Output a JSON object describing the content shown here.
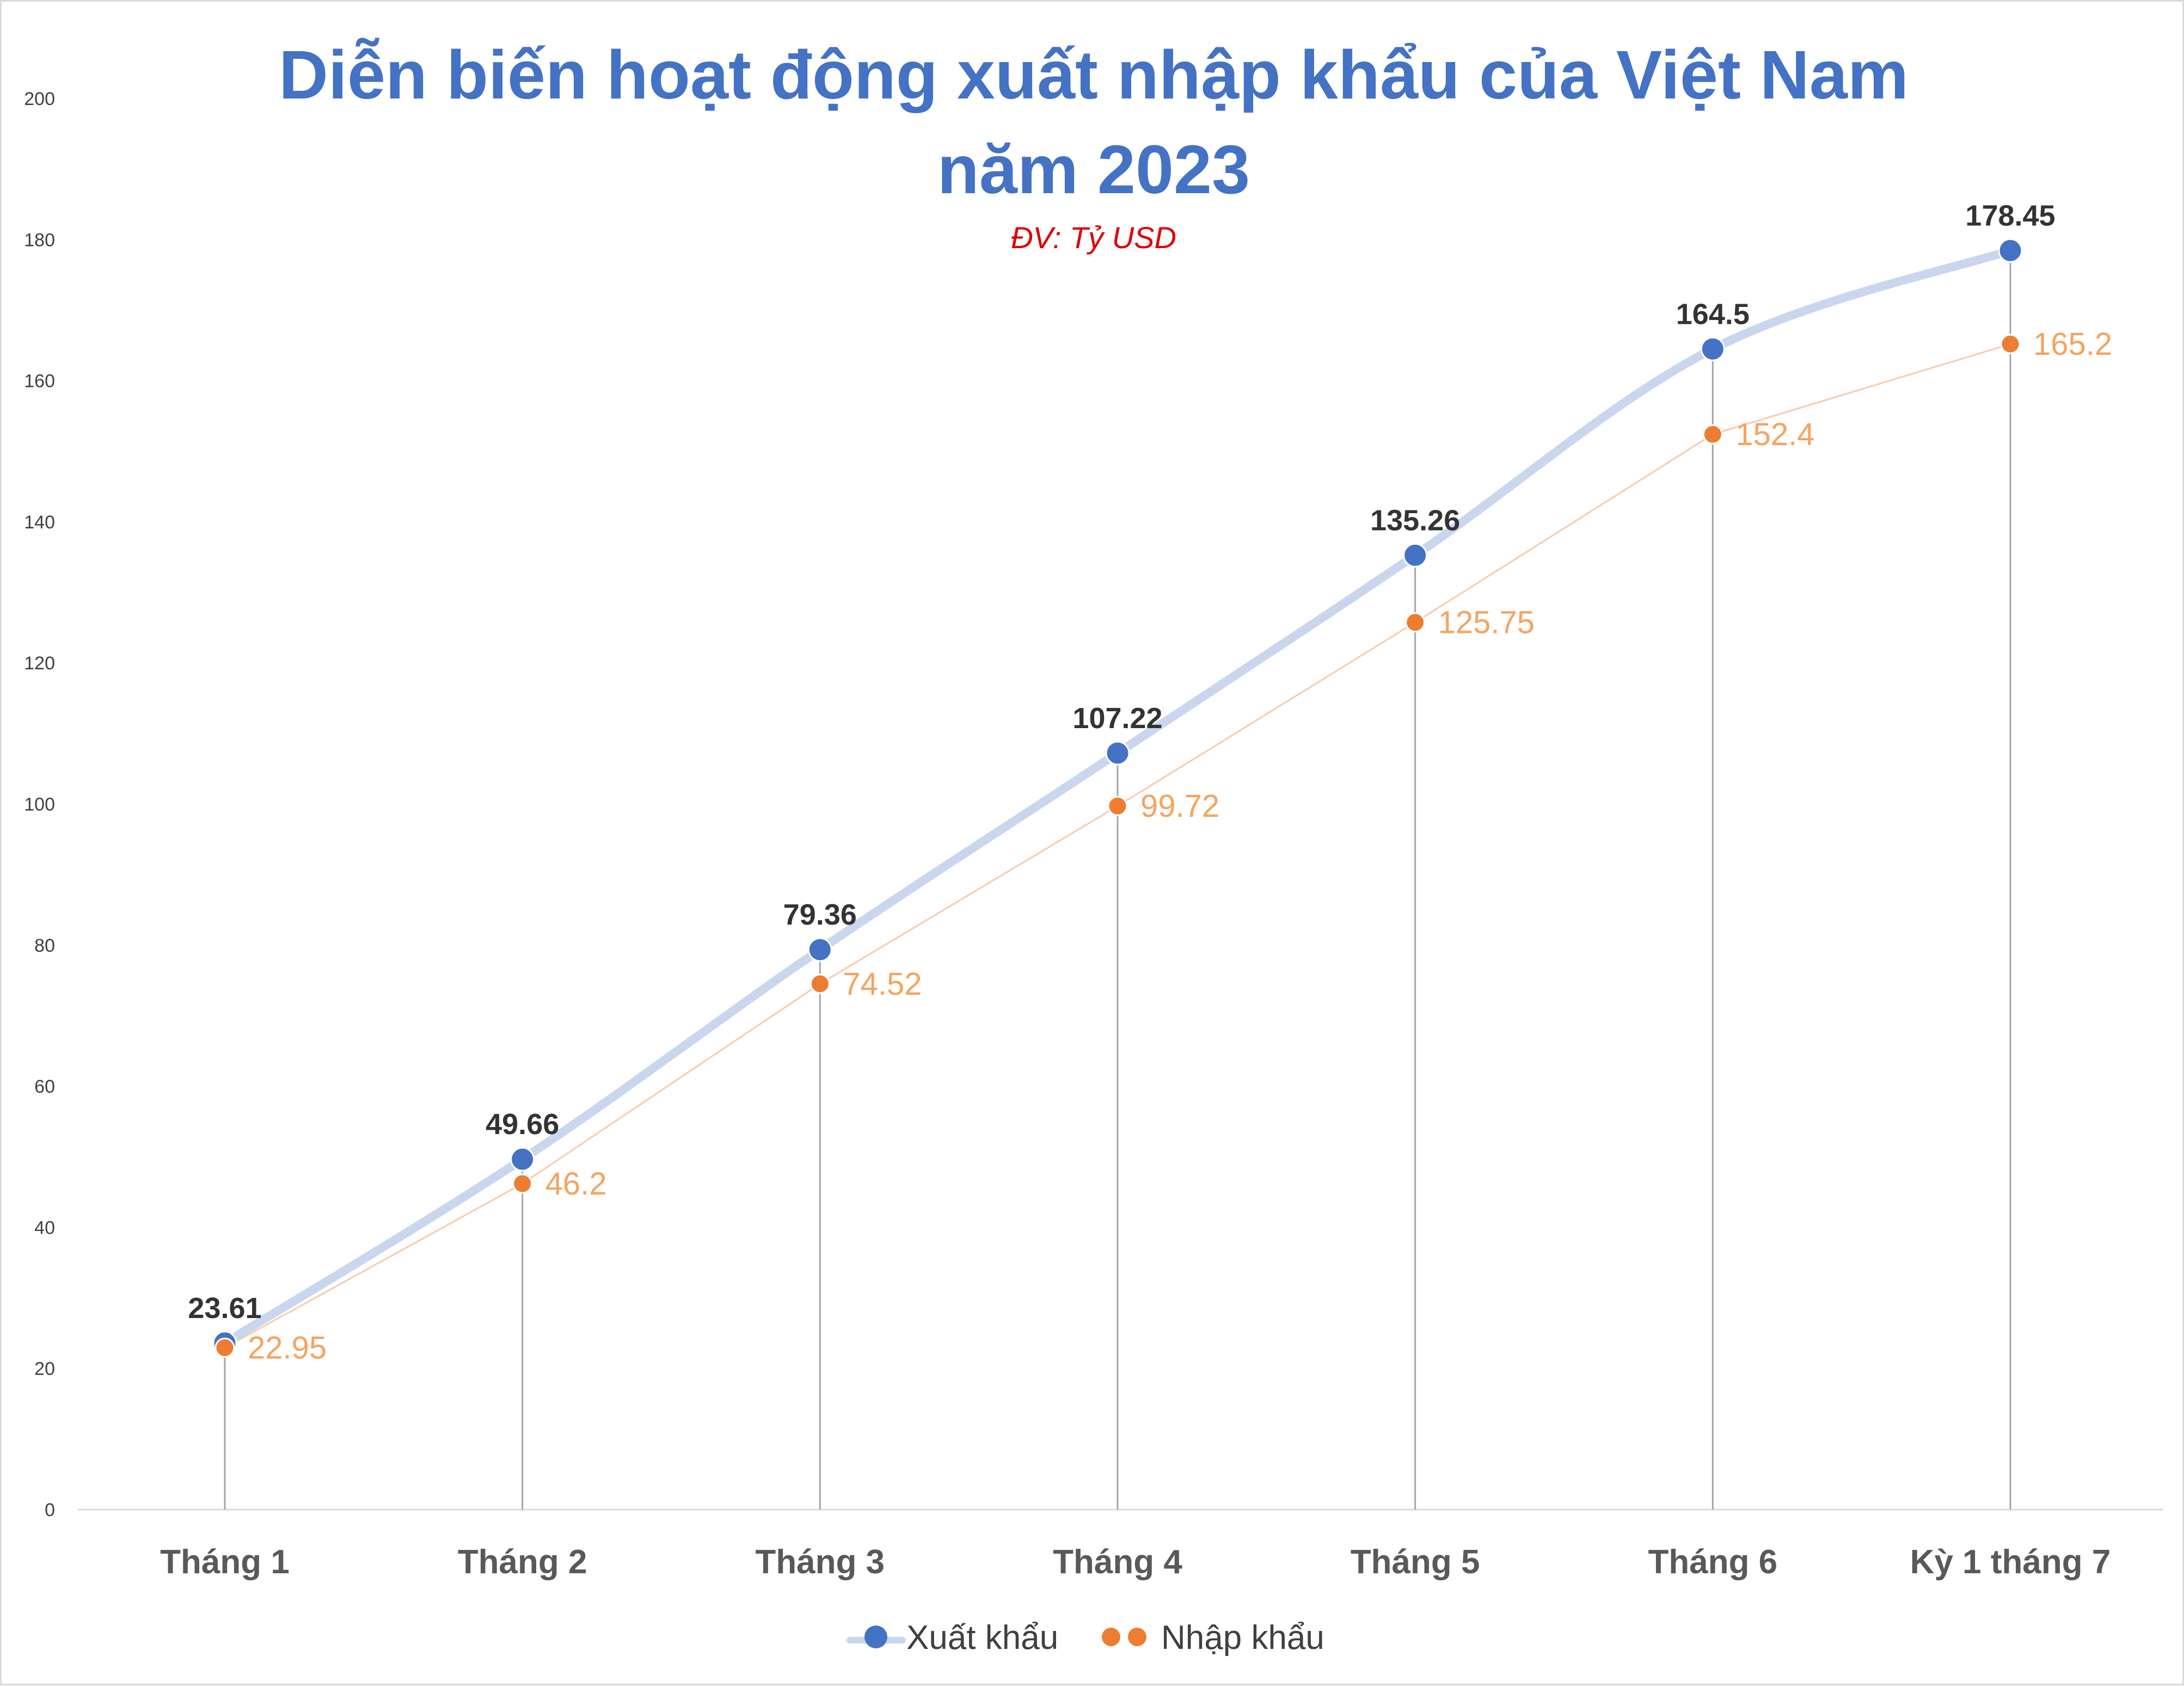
{
  "chart_data": {
    "type": "line",
    "title": "Diễn biến hoạt động xuất nhập khẩu của Việt Nam năm 2023",
    "title_lines": [
      "Diễn biến hoạt động xuất nhập khẩu của Việt Nam",
      "năm 2023"
    ],
    "subtitle": "ĐV: Tỷ USD",
    "categories": [
      "Tháng 1",
      "Tháng 2",
      "Tháng 3",
      "Tháng 4",
      "Tháng 5",
      "Tháng 6",
      "Kỳ 1 tháng 7"
    ],
    "series": [
      {
        "name": "Xuất khẩu",
        "values": [
          23.61,
          49.66,
          79.36,
          107.22,
          135.26,
          164.5,
          178.45
        ],
        "labels": [
          "23.61",
          "49.66",
          "79.36",
          "107.22",
          "135.26",
          "164.5",
          "178.45"
        ],
        "color": "#4472c4",
        "line_color": "#c9d6ee"
      },
      {
        "name": "Nhập khẩu",
        "values": [
          22.95,
          46.2,
          74.52,
          99.72,
          125.75,
          152.4,
          165.2
        ],
        "labels": [
          "22.95",
          "46.2",
          "74.52",
          "99.72",
          "125.75",
          "152.4",
          "165.2"
        ],
        "color": "#ed7d31",
        "line_color": "#f8cbad",
        "label_color": "#f4a460"
      }
    ],
    "ylim": [
      0,
      200
    ],
    "yticks": [
      "0",
      "20",
      "40",
      "60",
      "80",
      "100",
      "120",
      "140",
      "160",
      "180",
      "200"
    ],
    "grid": false,
    "drop_lines": true,
    "legend_position": "bottom",
    "title_color": "#4472c4",
    "subtitle_color": "#e00000"
  }
}
